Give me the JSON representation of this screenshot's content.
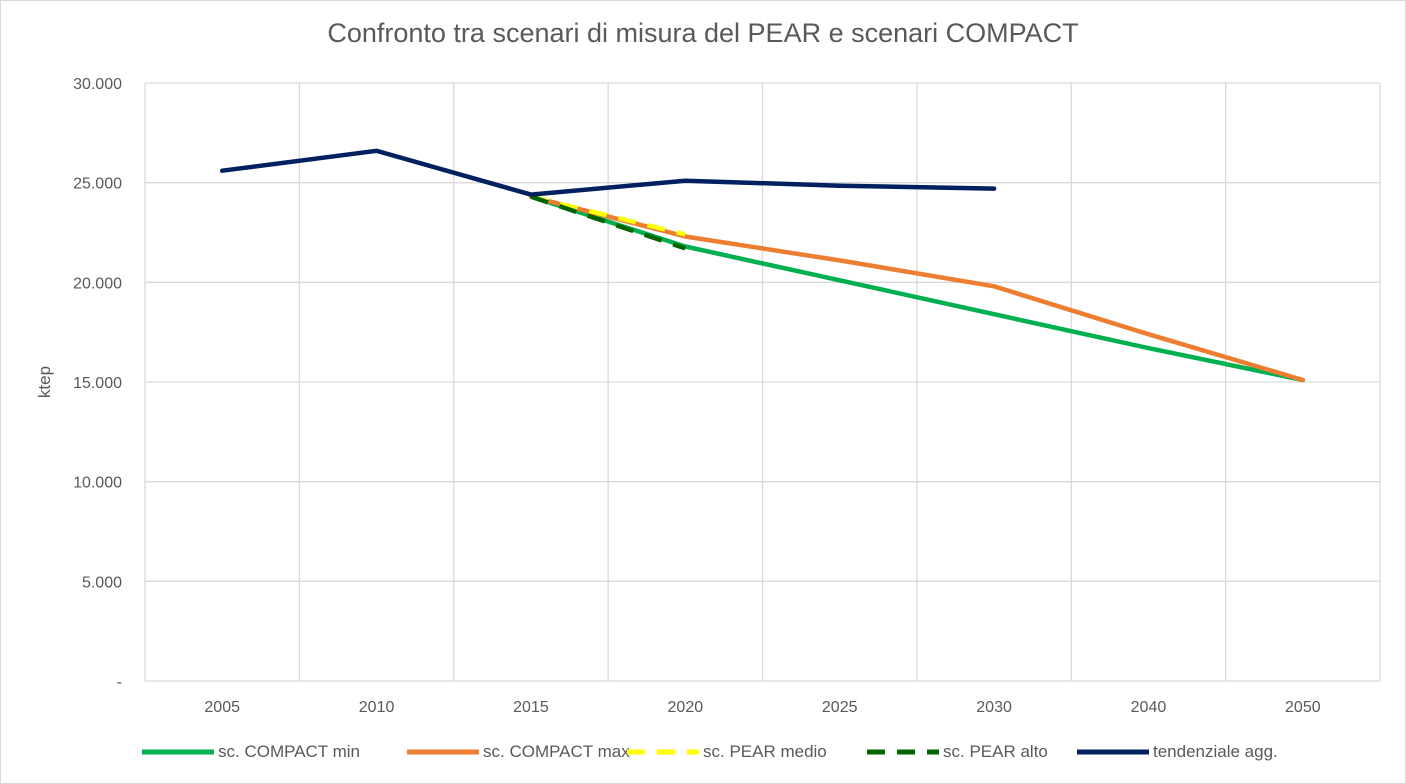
{
  "chart_data": {
    "type": "line",
    "title": "Confronto tra scenari di misura del PEAR e scenari COMPACT",
    "ylabel": "ktep",
    "xlabel": "",
    "categories": [
      "2005",
      "2010",
      "2015",
      "2020",
      "2025",
      "2030",
      "2040",
      "2050"
    ],
    "ylim": [
      0,
      30000
    ],
    "y_ticks": [
      {
        "value": 0,
        "label": "-"
      },
      {
        "value": 5000,
        "label": "5.000"
      },
      {
        "value": 10000,
        "label": "10.000"
      },
      {
        "value": 15000,
        "label": "15.000"
      },
      {
        "value": 20000,
        "label": "20.000"
      },
      {
        "value": 25000,
        "label": "25.000"
      },
      {
        "value": 30000,
        "label": "30.000"
      }
    ],
    "grid": true,
    "legend_position": "bottom",
    "series": [
      {
        "name": "sc. COMPACT min",
        "color": "#00b050",
        "dash": "solid",
        "values": [
          null,
          null,
          24300,
          21800,
          20100,
          18400,
          16700,
          15100
        ]
      },
      {
        "name": "sc. COMPACT max",
        "color": "#ed7d31",
        "dash": "solid",
        "values": [
          null,
          null,
          24300,
          22300,
          21100,
          19800,
          17400,
          15100
        ]
      },
      {
        "name": "sc. PEAR medio",
        "color": "#ffff00",
        "dash": "dashed",
        "values": [
          null,
          null,
          24300,
          22400,
          null,
          null,
          null,
          null
        ]
      },
      {
        "name": "sc. PEAR alto",
        "color": "#006400",
        "dash": "dashed",
        "values": [
          null,
          null,
          24300,
          21700,
          null,
          null,
          null,
          null
        ]
      },
      {
        "name": "tendenziale agg.",
        "color": "#002060",
        "dash": "solid",
        "values": [
          25600,
          26600,
          24400,
          25100,
          24850,
          24700,
          null,
          null
        ]
      }
    ]
  }
}
